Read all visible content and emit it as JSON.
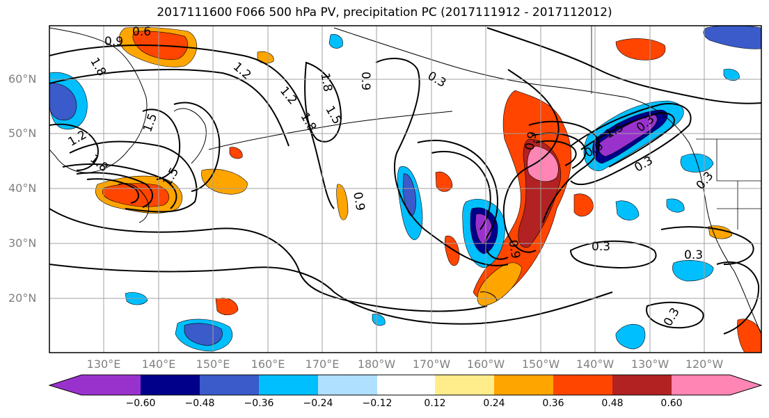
{
  "title": "2017111600 F066 500 hPa PV, precipitation PC (2017111912 - 2017112012)",
  "map": {
    "projection": "cylindrical",
    "lon_range": [
      120,
      -107
    ],
    "lat_range": [
      10,
      70
    ],
    "lat_labels": [
      "60°N",
      "50°N",
      "40°N",
      "30°N",
      "20°N"
    ],
    "lon_labels": [
      "130°E",
      "140°E",
      "150°E",
      "160°E",
      "170°E",
      "180°W",
      "170°W",
      "160°W",
      "150°W",
      "140°W",
      "130°W",
      "120°W"
    ],
    "axis_label_color": "#808080",
    "gridline_color": "#a0a0a0"
  },
  "contours": {
    "variable": "500 hPa PV",
    "line_color": "#000000",
    "labels": [
      "0.6",
      "0.9",
      "1.8",
      "1.5",
      "1.2",
      "1.2",
      "1.8",
      "1.5",
      "1.2",
      "1.8",
      "0.9",
      "1.8",
      "1.5",
      "0.3",
      "0.9",
      "0.9",
      "1.5",
      "0.6",
      "0.3",
      "0.3",
      "0.3",
      "0.9",
      "0.3",
      "0.3",
      "0.3"
    ]
  },
  "colorbar": {
    "variable": "precipitation PC",
    "ticks": [
      "−0.60",
      "−0.48",
      "−0.36",
      "−0.24",
      "−0.12",
      "0.12",
      "0.24",
      "0.36",
      "0.48",
      "0.60"
    ],
    "colors": [
      "#9932cc",
      "#00008b",
      "#3a5bc9",
      "#00bfff",
      "#b0e0ff",
      "#ffffff",
      "#ffec8b",
      "#ffa500",
      "#ff4500",
      "#b22222",
      "#ff85b4"
    ]
  }
}
